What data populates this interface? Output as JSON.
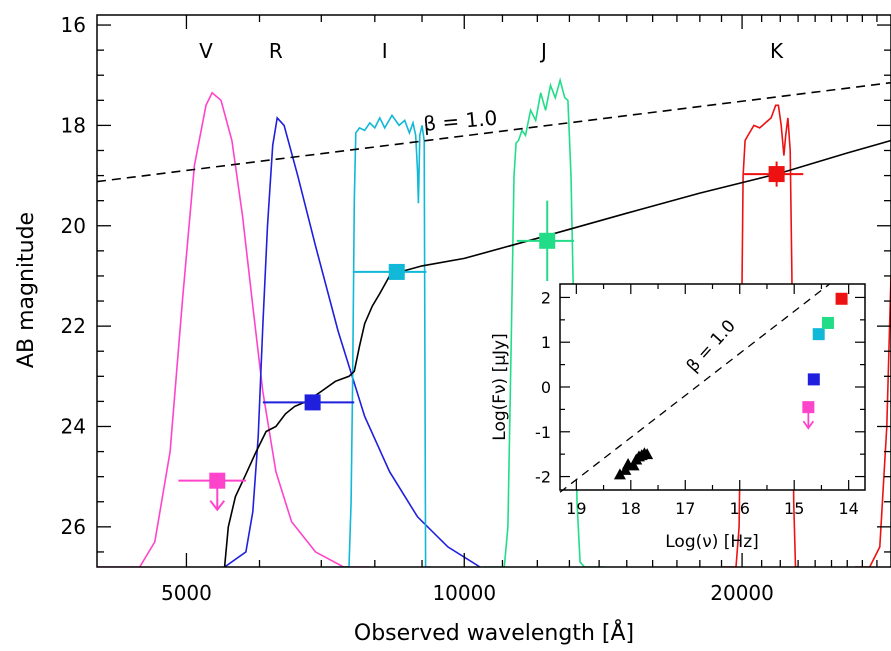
{
  "chart_data": [
    {
      "type": "line",
      "xlabel": "Observed wavelength [Å]",
      "ylabel": "AB magnitude",
      "x_scale": "log",
      "xlim": [
        4000,
        29000
      ],
      "ylim": [
        26.8,
        15.8
      ],
      "y_inverted": true,
      "x_ticks": [
        5000,
        10000,
        20000
      ],
      "x_tick_labels": [
        "5000",
        "10000",
        "20000"
      ],
      "y_ticks": [
        16,
        18,
        20,
        22,
        24,
        26
      ],
      "y_tick_labels": [
        "16",
        "18",
        "20",
        "22",
        "24",
        "26"
      ],
      "band_labels": [
        "V",
        "R",
        "I",
        "J",
        "K"
      ],
      "bands": [
        {
          "name": "V",
          "color": "#ff44cc",
          "curve": [
            [
              4000,
              26.8
            ],
            [
              4450,
              26.8
            ],
            [
              4620,
              26.3
            ],
            [
              4800,
              24.5
            ],
            [
              4950,
              21.5
            ],
            [
              5100,
              18.8
            ],
            [
              5250,
              17.6
            ],
            [
              5330,
              17.35
            ],
            [
              5450,
              17.5
            ],
            [
              5600,
              18.3
            ],
            [
              5750,
              19.8
            ],
            [
              5900,
              21.6
            ],
            [
              6050,
              23.3
            ],
            [
              6250,
              24.9
            ],
            [
              6500,
              25.9
            ],
            [
              6900,
              26.5
            ],
            [
              7400,
              26.8
            ],
            [
              7900,
              26.8
            ]
          ]
        },
        {
          "name": "R",
          "color": "#1f1fdd",
          "curve": [
            [
              5500,
              26.8
            ],
            [
              5800,
              26.5
            ],
            [
              5900,
              25.7
            ],
            [
              5980,
              24.2
            ],
            [
              6050,
              22.0
            ],
            [
              6120,
              20.0
            ],
            [
              6200,
              18.4
            ],
            [
              6270,
              17.85
            ],
            [
              6380,
              18.0
            ],
            [
              6600,
              19.0
            ],
            [
              6900,
              20.4
            ],
            [
              7300,
              22.1
            ],
            [
              7800,
              23.8
            ],
            [
              8300,
              24.9
            ],
            [
              8900,
              25.8
            ],
            [
              9600,
              26.4
            ],
            [
              10400,
              26.8
            ]
          ]
        },
        {
          "name": "I",
          "color": "#11b8d8",
          "curve": [
            [
              7200,
              26.8
            ],
            [
              7500,
              26.8
            ],
            [
              7540,
              25.5
            ],
            [
              7570,
              23.0
            ],
            [
              7600,
              19.5
            ],
            [
              7630,
              18.15
            ],
            [
              7700,
              18.05
            ],
            [
              7800,
              18.1
            ],
            [
              7900,
              17.95
            ],
            [
              8000,
              18.05
            ],
            [
              8100,
              17.85
            ],
            [
              8200,
              18.05
            ],
            [
              8350,
              17.8
            ],
            [
              8500,
              18.0
            ],
            [
              8620,
              17.9
            ],
            [
              8720,
              18.15
            ],
            [
              8800,
              17.95
            ],
            [
              8860,
              18.2
            ],
            [
              8900,
              18.9
            ],
            [
              8920,
              19.55
            ],
            [
              8950,
              18.2
            ],
            [
              9000,
              18.0
            ],
            [
              9050,
              18.3
            ],
            [
              9080,
              26.8
            ],
            [
              9200,
              26.8
            ]
          ]
        },
        {
          "name": "J",
          "color": "#22dd88",
          "curve": [
            [
              10500,
              26.8
            ],
            [
              11050,
              26.8
            ],
            [
              11150,
              26.0
            ],
            [
              11250,
              22.0
            ],
            [
              11320,
              19.0
            ],
            [
              11380,
              18.35
            ],
            [
              11450,
              18.3
            ],
            [
              11550,
              18.1
            ],
            [
              11650,
              18.2
            ],
            [
              11800,
              17.7
            ],
            [
              11950,
              17.9
            ],
            [
              12100,
              17.35
            ],
            [
              12250,
              17.7
            ],
            [
              12400,
              17.2
            ],
            [
              12550,
              17.45
            ],
            [
              12700,
              17.1
            ],
            [
              12850,
              17.45
            ],
            [
              12950,
              17.5
            ],
            [
              13050,
              19.0
            ],
            [
              13150,
              22.0
            ],
            [
              13250,
              25.5
            ],
            [
              13350,
              26.7
            ],
            [
              13500,
              26.8
            ],
            [
              14200,
              26.8
            ]
          ]
        },
        {
          "name": "K",
          "color": "#ee1111",
          "curve": [
            [
              19000,
              26.8
            ],
            [
              19700,
              26.8
            ],
            [
              19850,
              26.0
            ],
            [
              19950,
              23.0
            ],
            [
              20050,
              19.0
            ],
            [
              20150,
              18.3
            ],
            [
              20300,
              18.2
            ],
            [
              20600,
              18.0
            ],
            [
              20900,
              18.05
            ],
            [
              21200,
              17.95
            ],
            [
              21500,
              17.85
            ],
            [
              21750,
              17.6
            ],
            [
              21900,
              17.6
            ],
            [
              22050,
              18.0
            ],
            [
              22200,
              18.6
            ],
            [
              22300,
              18.2
            ],
            [
              22420,
              17.85
            ],
            [
              22550,
              18.5
            ],
            [
              22650,
              21.0
            ],
            [
              22750,
              25.5
            ],
            [
              22850,
              26.8
            ],
            [
              23000,
              26.8
            ]
          ]
        },
        {
          "name": "K2",
          "color": "#ee1111",
          "curve": [
            [
              26500,
              26.8
            ],
            [
              27500,
              26.8
            ],
            [
              28200,
              26.4
            ],
            [
              28700,
              24.0
            ],
            [
              29000,
              21.0
            ]
          ]
        }
      ],
      "series": [
        {
          "style": "solid",
          "color": "#000000",
          "points": [
            [
              5500,
              26.8
            ],
            [
              5550,
              26.0
            ],
            [
              5650,
              25.4
            ],
            [
              5800,
              24.95
            ],
            [
              5950,
              24.5
            ],
            [
              6100,
              24.1
            ],
            [
              6250,
              24.0
            ],
            [
              6400,
              23.75
            ],
            [
              6550,
              23.6
            ],
            [
              6750,
              23.5
            ],
            [
              7000,
              23.3
            ],
            [
              7250,
              23.1
            ],
            [
              7500,
              23.0
            ],
            [
              7600,
              22.9
            ],
            [
              7700,
              22.4
            ],
            [
              7800,
              21.95
            ],
            [
              7950,
              21.6
            ],
            [
              8100,
              21.35
            ],
            [
              8300,
              21.0
            ],
            [
              8600,
              20.9
            ],
            [
              9000,
              20.8
            ],
            [
              10000,
              20.65
            ],
            [
              12000,
              20.25
            ],
            [
              15000,
              19.75
            ],
            [
              18000,
              19.35
            ],
            [
              22000,
              18.95
            ],
            [
              26000,
              18.55
            ],
            [
              29000,
              18.3
            ]
          ]
        },
        {
          "style": "dashed",
          "color": "#000000",
          "points": [
            [
              4000,
              19.12
            ],
            [
              29000,
              17.15
            ]
          ]
        }
      ],
      "annotations": [
        "β = 1.0"
      ],
      "photometry": [
        {
          "band": "V",
          "color": "#ff44cc",
          "x": 5400,
          "y": 25.08,
          "x_range": [
            4900,
            5800
          ],
          "upper_limit": true
        },
        {
          "band": "R",
          "color": "#1f1fdd",
          "x": 6850,
          "y": 23.52,
          "x_range": [
            6050,
            7600
          ],
          "y_err": 0
        },
        {
          "band": "I",
          "color": "#11b8d8",
          "x": 8450,
          "y": 20.92,
          "x_range": [
            7600,
            9100
          ],
          "y_err": 0
        },
        {
          "band": "J",
          "color": "#22dd88",
          "x": 12300,
          "y": 20.3,
          "x_range": [
            11400,
            13150
          ],
          "y_err": 0.8
        },
        {
          "band": "K",
          "color": "#ee1111",
          "x": 21800,
          "y": 18.97,
          "x_range": [
            20100,
            23300
          ],
          "y_err": 0.25
        }
      ]
    },
    {
      "type": "scatter",
      "xlabel": "Log(ν) [Hz]",
      "ylabel": "Log(F_ν) [μJy]",
      "ylabel_display": "Log(Fν) [μJy]",
      "xlim": [
        19.3,
        13.7
      ],
      "ylim": [
        -2.3,
        2.3
      ],
      "x_ticks": [
        19,
        18,
        17,
        16,
        15,
        14
      ],
      "x_tick_labels": [
        "19",
        "18",
        "17",
        "16",
        "15",
        "14"
      ],
      "y_ticks": [
        -2,
        -1,
        0,
        1,
        2
      ],
      "y_tick_labels": [
        "-2",
        "-1",
        "0",
        "1",
        "2"
      ],
      "annotations": [
        "β = 1.0"
      ],
      "xray_points": [
        [
          18.2,
          -1.95
        ],
        [
          18.1,
          -1.85
        ],
        [
          18.05,
          -1.72
        ],
        [
          17.95,
          -1.75
        ],
        [
          17.9,
          -1.62
        ],
        [
          17.85,
          -1.55
        ],
        [
          17.8,
          -1.52
        ],
        [
          17.75,
          -1.48
        ],
        [
          17.7,
          -1.5
        ]
      ],
      "optical_points": [
        {
          "band": "V",
          "x": 14.74,
          "y": -0.45,
          "color": "#ff44cc",
          "upper_limit": true
        },
        {
          "band": "R",
          "x": 14.64,
          "y": 0.17,
          "color": "#1f1fdd"
        },
        {
          "band": "I",
          "x": 14.55,
          "y": 1.18,
          "color": "#11b8d8"
        },
        {
          "band": "J",
          "x": 14.38,
          "y": 1.43,
          "color": "#22dd88"
        },
        {
          "band": "K",
          "x": 14.13,
          "y": 1.97,
          "color": "#ee1111"
        }
      ],
      "dashed_line": [
        [
          19.3,
          -2.35
        ],
        [
          14.35,
          2.3
        ]
      ]
    }
  ]
}
